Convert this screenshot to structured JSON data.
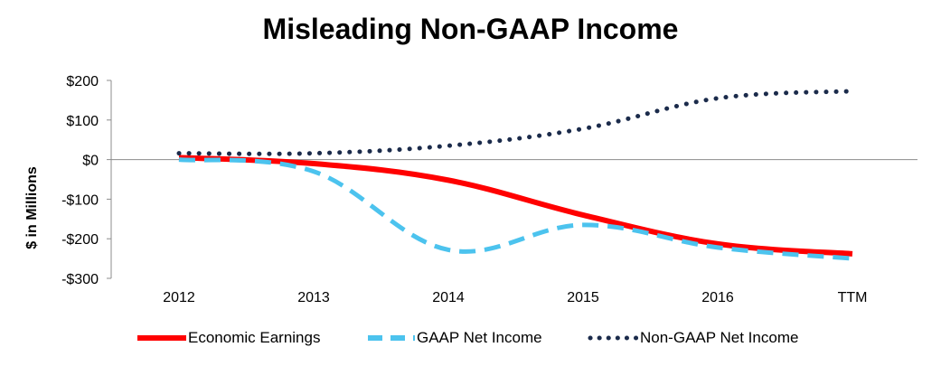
{
  "chart_data": {
    "type": "line",
    "title": "Misleading Non-GAAP Income",
    "ylabel": "$ in Millions",
    "xlabel": "",
    "categories": [
      "2012",
      "2013",
      "2014",
      "2015",
      "2016",
      "TTM"
    ],
    "ylim": [
      -300,
      200
    ],
    "yticks": [
      200,
      100,
      0,
      -100,
      -200,
      -300
    ],
    "ytick_labels": [
      "$200",
      "$100",
      "$0",
      "-$100",
      "-$200",
      "-$300"
    ],
    "grid": false,
    "legend_position": "bottom",
    "series": [
      {
        "name": "Economic Earnings",
        "values": [
          5,
          -10,
          -52,
          -140,
          -213,
          -238
        ],
        "color": "#ff0000",
        "style": "solid"
      },
      {
        "name": "GAAP Net Income",
        "values": [
          0,
          -30,
          -228,
          -165,
          -222,
          -250
        ],
        "color": "#4cc3ee",
        "style": "dashed"
      },
      {
        "name": "Non-GAAP Net Income",
        "values": [
          16,
          16,
          35,
          78,
          155,
          173
        ],
        "color": "#1b2b4b",
        "style": "dotted"
      }
    ]
  }
}
